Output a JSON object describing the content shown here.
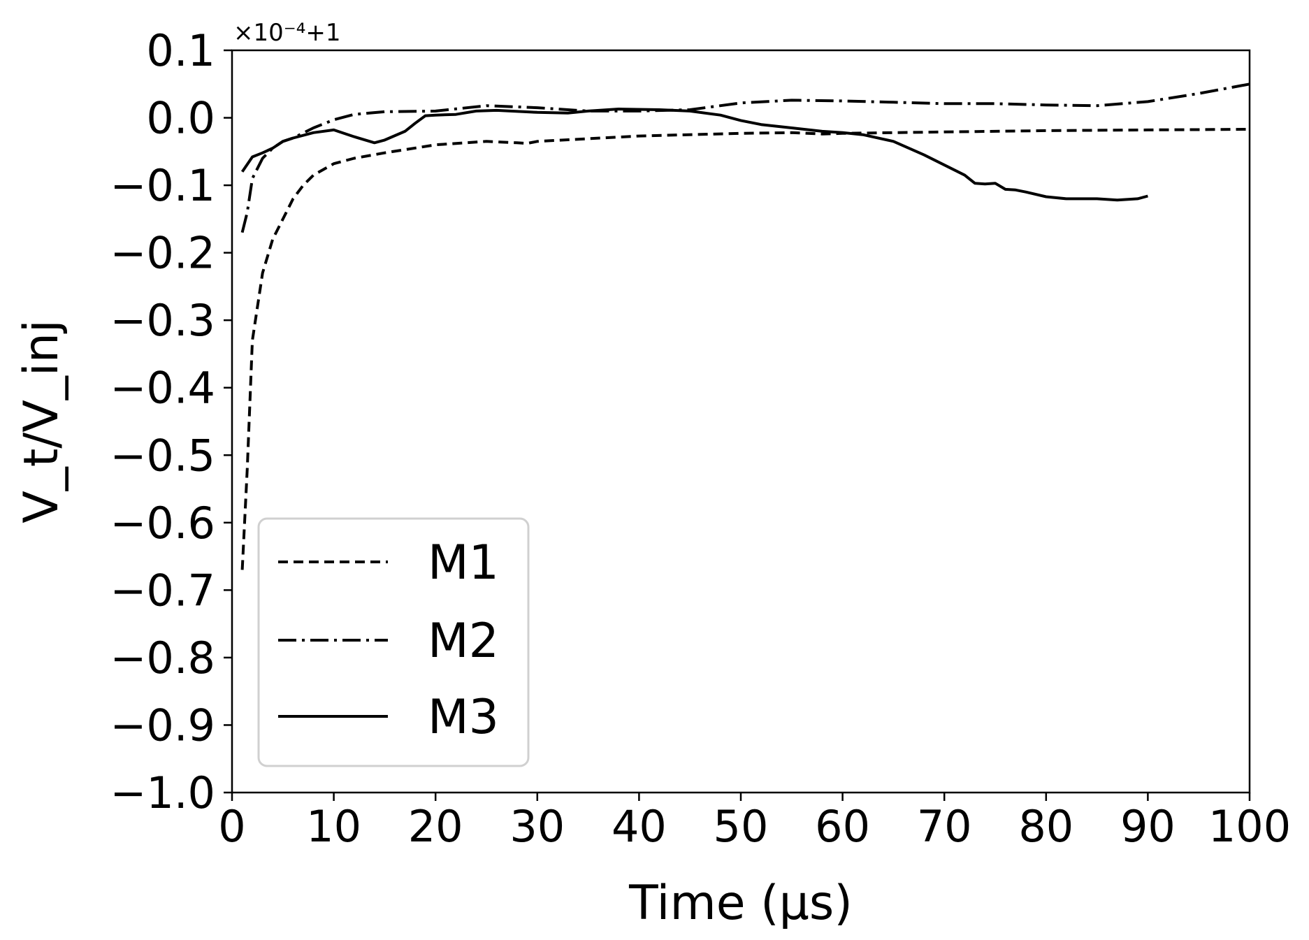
{
  "chart_data": {
    "type": "line",
    "title": "",
    "xlabel": "Time (μs)",
    "ylabel": "V_t/V_inj",
    "offset_text": "×10⁻⁴+1",
    "xlim": [
      0,
      100
    ],
    "ylim": [
      -1.0,
      0.1
    ],
    "xticks": [
      0,
      10,
      20,
      30,
      40,
      50,
      60,
      70,
      80,
      90,
      100
    ],
    "xtick_labels": [
      "0",
      "10",
      "20",
      "30",
      "40",
      "50",
      "60",
      "70",
      "80",
      "90",
      "100"
    ],
    "yticks": [
      0.1,
      0.0,
      -0.1,
      -0.2,
      -0.3,
      -0.4,
      -0.5,
      -0.6,
      -0.7,
      -0.8,
      -0.9,
      -1.0
    ],
    "ytick_labels": [
      "0.1",
      "0.0",
      "−0.1",
      "−0.2",
      "−0.3",
      "−0.4",
      "−0.5",
      "−0.6",
      "−0.7",
      "−0.8",
      "−0.9",
      "−1.0"
    ],
    "grid": false,
    "legend_position": "lower-left",
    "series": [
      {
        "name": "M1",
        "style": "dashed",
        "x": [
          1,
          1.5,
          2,
          3,
          4,
          5,
          6,
          7,
          8,
          10,
          12,
          15,
          20,
          25,
          28,
          29,
          30,
          40,
          50,
          55,
          58,
          60,
          65,
          70,
          80,
          90,
          100
        ],
        "y": [
          -0.67,
          -0.52,
          -0.33,
          -0.23,
          -0.18,
          -0.15,
          -0.12,
          -0.1,
          -0.085,
          -0.068,
          -0.06,
          -0.052,
          -0.04,
          -0.035,
          -0.037,
          -0.038,
          -0.035,
          -0.027,
          -0.023,
          -0.022,
          -0.024,
          -0.023,
          -0.022,
          -0.021,
          -0.019,
          -0.018,
          -0.017
        ]
      },
      {
        "name": "M2",
        "style": "dashdot",
        "x": [
          1,
          1.5,
          2,
          3,
          4,
          5,
          6,
          8,
          10,
          12,
          15,
          20,
          25,
          30,
          35,
          40,
          45,
          50,
          55,
          60,
          65,
          70,
          75,
          80,
          85,
          90,
          95,
          100
        ],
        "y": [
          -0.17,
          -0.14,
          -0.09,
          -0.06,
          -0.045,
          -0.035,
          -0.03,
          -0.015,
          -0.003,
          0.005,
          0.009,
          0.01,
          0.018,
          0.015,
          0.01,
          0.01,
          0.012,
          0.022,
          0.026,
          0.025,
          0.023,
          0.021,
          0.021,
          0.019,
          0.018,
          0.024,
          0.036,
          0.05
        ]
      },
      {
        "name": "M3",
        "style": "solid",
        "x": [
          1,
          2,
          3,
          4,
          5,
          6,
          8,
          10,
          12,
          14,
          15,
          17,
          18,
          19,
          20,
          22,
          24,
          26,
          30,
          33,
          35,
          38,
          42,
          45,
          48,
          50,
          52,
          55,
          58,
          60,
          62,
          65,
          68,
          70,
          72,
          73,
          74,
          75,
          76,
          77,
          78,
          80,
          82,
          85,
          87,
          89,
          90
        ],
        "y": [
          -0.08,
          -0.058,
          -0.052,
          -0.045,
          -0.035,
          -0.03,
          -0.022,
          -0.018,
          -0.028,
          -0.037,
          -0.033,
          -0.02,
          -0.008,
          0.003,
          0.004,
          0.005,
          0.01,
          0.011,
          0.008,
          0.007,
          0.01,
          0.013,
          0.012,
          0.01,
          0.004,
          -0.004,
          -0.01,
          -0.015,
          -0.02,
          -0.022,
          -0.025,
          -0.035,
          -0.055,
          -0.07,
          -0.085,
          -0.097,
          -0.098,
          -0.097,
          -0.106,
          -0.107,
          -0.11,
          -0.117,
          -0.12,
          -0.12,
          -0.122,
          -0.12,
          -0.116
        ]
      }
    ]
  }
}
